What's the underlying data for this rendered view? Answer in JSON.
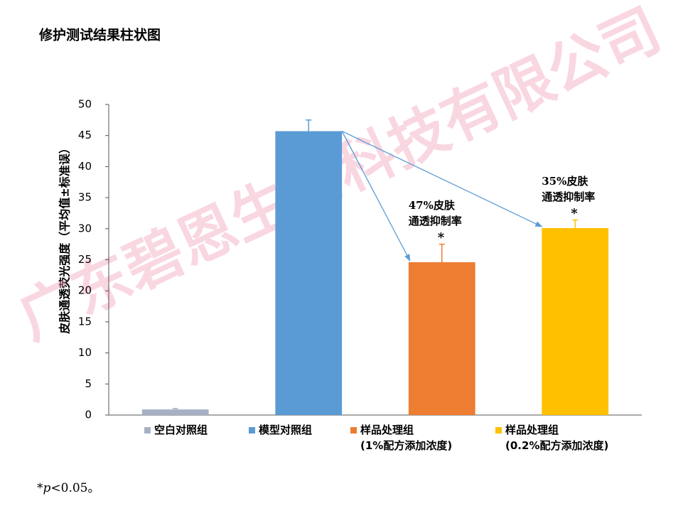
{
  "chart_data": {
    "type": "bar",
    "title": "修护测试结果柱状图",
    "y_label": "皮肤通透荧光强度（平均值±标准误）",
    "categories": [
      "空白对照组",
      "模型对照组",
      "样品处理组\n(1%配方添加浓度)",
      "样品处理组\n(0.2%配方添加浓度)"
    ],
    "values": [
      0.9,
      45.7,
      24.6,
      30.1
    ],
    "errors": [
      0.15,
      1.8,
      2.9,
      1.3
    ],
    "colors": [
      "#a6b1c6",
      "#5b9bd5",
      "#ed7d31",
      "#ffc000"
    ],
    "ylim": [
      0,
      50
    ],
    "yticks": [
      0,
      5,
      10,
      15,
      20,
      25,
      30,
      35,
      40,
      45,
      50
    ],
    "annotations": [
      {
        "category": 2,
        "text": "47%皮肤\n通透抑制率",
        "sig": "*"
      },
      {
        "category": 3,
        "text": "35%皮肤\n通透抑制率",
        "sig": "*"
      }
    ],
    "footnote": {
      "star": "*",
      "p": "p",
      "rest": "<0.05。"
    },
    "watermark": "广东碧恩生物科技有限公司"
  }
}
